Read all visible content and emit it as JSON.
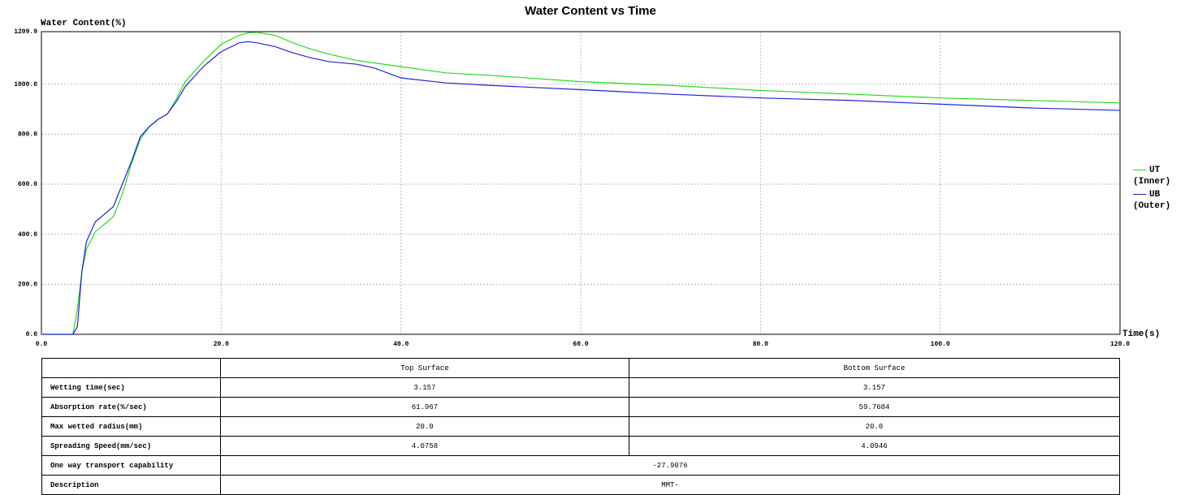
{
  "chart_data": {
    "type": "line",
    "title": "Water Content vs Time",
    "y_label": "Water Content(%)",
    "x_label": "Time(s)",
    "x": [
      0,
      3.5,
      4,
      4.5,
      5,
      6,
      7,
      8,
      9,
      10,
      11,
      12,
      13,
      14,
      15,
      16,
      18,
      20,
      22,
      23,
      24,
      26,
      28,
      30,
      32,
      35,
      37,
      40,
      45,
      50,
      60,
      70,
      80,
      90,
      100,
      110,
      120
    ],
    "series": [
      {
        "name": "UT (Inner)",
        "color": "#22dd22",
        "values": [
          0,
          0,
          100,
          250,
          340,
          410,
          440,
          470,
          560,
          680,
          780,
          830,
          860,
          880,
          940,
          1010,
          1090,
          1160,
          1195,
          1205,
          1207,
          1195,
          1165,
          1140,
          1120,
          1095,
          1085,
          1070,
          1045,
          1035,
          1010,
          995,
          975,
          960,
          945,
          935,
          925
        ]
      },
      {
        "name": "UB (Outer)",
        "color": "#2222dd",
        "values": [
          0,
          0,
          30,
          250,
          370,
          450,
          480,
          510,
          600,
          690,
          790,
          830,
          860,
          880,
          930,
          990,
          1070,
          1130,
          1165,
          1170,
          1165,
          1150,
          1125,
          1105,
          1090,
          1080,
          1065,
          1025,
          1005,
          995,
          978,
          960,
          945,
          935,
          920,
          905,
          895
        ]
      }
    ],
    "xlim": [
      0,
      120
    ],
    "xticks": [
      {
        "value": 0,
        "label": "0.0"
      },
      {
        "value": 20,
        "label": "20.0"
      },
      {
        "value": 40,
        "label": "40.0"
      },
      {
        "value": 60,
        "label": "60.0"
      },
      {
        "value": 80,
        "label": "80.0"
      },
      {
        "value": 100,
        "label": "100.0"
      },
      {
        "value": 120,
        "label": "120.0"
      }
    ],
    "ylim": [
      0,
      1209.9
    ],
    "yticks": [
      {
        "value": 0,
        "label": "0.0"
      },
      {
        "value": 200,
        "label": "200.0"
      },
      {
        "value": 400,
        "label": "400.0"
      },
      {
        "value": 600,
        "label": "600.0"
      },
      {
        "value": 800,
        "label": "800.0"
      },
      {
        "value": 1000,
        "label": "1000.0"
      },
      1209.9
    ],
    "grid": true,
    "legend": "right"
  },
  "table": {
    "columns": [
      "Top Surface",
      "Bottom Surface"
    ],
    "rows": [
      [
        "Wetting time(sec)",
        "3.157",
        "3.157"
      ],
      [
        "Absorption rate(%/sec)",
        "61.967",
        "59.7684"
      ],
      [
        "Max wetted radius(mm)",
        "20.0",
        "20.0"
      ],
      [
        "Spreading Speed(mm/sec)",
        "4.0758",
        "4.0946"
      ],
      [
        "One way transport capability",
        "-27.9076"
      ],
      [
        "Description",
        "MMT-"
      ]
    ]
  }
}
